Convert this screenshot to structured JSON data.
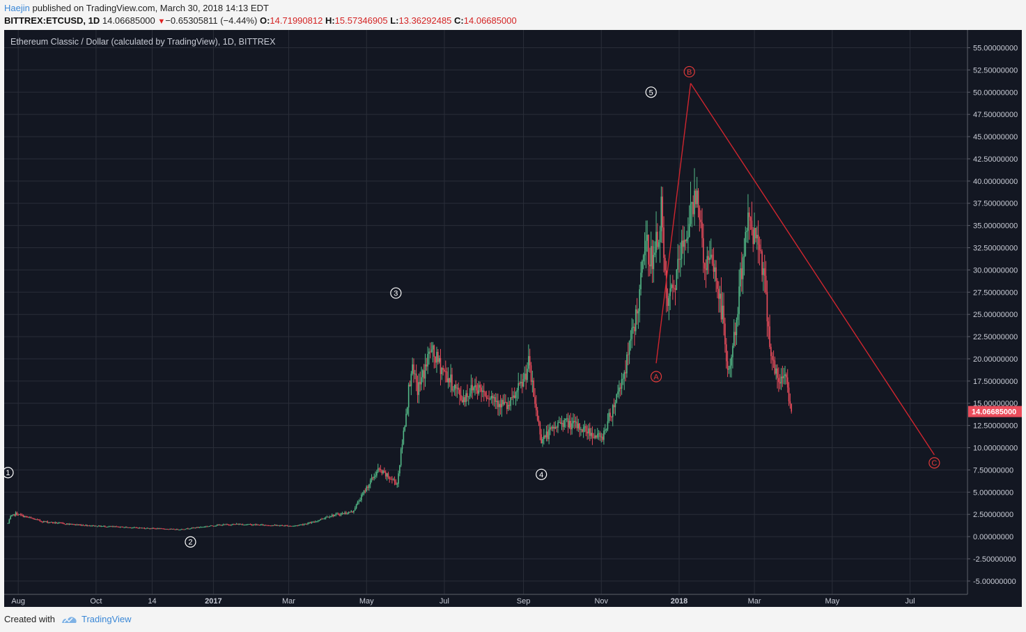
{
  "header": {
    "author": "Haejin",
    "published_text": "published on TradingView.com, March 30, 2018 14:13 EDT",
    "symbol_text": "BITTREX:ETCUSD, 1D",
    "last_price": "14.06685000",
    "change_arrow": "▼",
    "change_text": "−0.65305811 (−4.44%)",
    "open_label": "O:",
    "open_value": "14.71990812",
    "high_label": "H:",
    "high_value": "15.57346905",
    "low_label": "L:",
    "low_value": "13.36292485",
    "close_label": "C:",
    "close_value": "14.06685000"
  },
  "footer": {
    "created_with": "Created with",
    "brand": "TradingView"
  },
  "colors": {
    "background": "#131722",
    "up": "#53b987",
    "down": "#eb4d5c",
    "wave_line": "#d0262f",
    "grid": "#2a2e39"
  },
  "chart_data": {
    "type": "candlestick",
    "title": "Ethereum Classic / Dollar (calculated by TradingView), 1D, BITTREX",
    "price_label": "14.06685000",
    "ylim": [
      -6.5,
      57
    ],
    "yticks": [
      55,
      52.5,
      50,
      47.5,
      45,
      42.5,
      40,
      37.5,
      35,
      32.5,
      30,
      27.5,
      25,
      22.5,
      20,
      17.5,
      15,
      12.5,
      10,
      7.5,
      5,
      2.5,
      0,
      -2.5,
      -5
    ],
    "ytick_labels": [
      "55.00000000",
      "52.50000000",
      "50.00000000",
      "47.50000000",
      "45.00000000",
      "42.50000000",
      "40.00000000",
      "37.50000000",
      "35.00000000",
      "32.50000000",
      "30.00000000",
      "27.50000000",
      "25.00000000",
      "22.50000000",
      "20.00000000",
      "17.50000000",
      "15.00000000",
      "12.50000000",
      "10.00000000",
      "7.50000000",
      "5.00000000",
      "2.50000000",
      "0.00000000",
      "-2.50000000",
      "-5.00000000"
    ],
    "xlim": [
      "2016-07-21",
      "2018-08-15"
    ],
    "xticks": [
      {
        "date": "2016-08-01",
        "label": "Aug"
      },
      {
        "date": "2016-10-01",
        "label": "Oct"
      },
      {
        "date": "2016-11-14",
        "label": "14"
      },
      {
        "date": "2017-01-01",
        "label": "2017"
      },
      {
        "date": "2017-03-01",
        "label": "Mar"
      },
      {
        "date": "2017-05-01",
        "label": "May"
      },
      {
        "date": "2017-07-01",
        "label": "Jul"
      },
      {
        "date": "2017-09-01",
        "label": "Sep"
      },
      {
        "date": "2017-11-01",
        "label": "Nov"
      },
      {
        "date": "2018-01-01",
        "label": "2018"
      },
      {
        "date": "2018-03-01",
        "label": "Mar"
      },
      {
        "date": "2018-05-01",
        "label": "May"
      },
      {
        "date": "2018-07-01",
        "label": "Jul"
      }
    ],
    "price_path": [
      [
        "2016-07-24",
        1.5
      ],
      [
        "2016-07-26",
        2.2
      ],
      [
        "2016-07-30",
        2.6
      ],
      [
        "2016-08-05",
        2.3
      ],
      [
        "2016-08-20",
        1.7
      ],
      [
        "2016-09-10",
        1.4
      ],
      [
        "2016-10-01",
        1.2
      ],
      [
        "2016-11-01",
        1.0
      ],
      [
        "2016-12-05",
        0.8
      ],
      [
        "2017-01-05",
        1.3
      ],
      [
        "2017-01-20",
        1.4
      ],
      [
        "2017-02-10",
        1.3
      ],
      [
        "2017-03-05",
        1.2
      ],
      [
        "2017-03-20",
        1.6
      ],
      [
        "2017-04-01",
        2.3
      ],
      [
        "2017-04-20",
        2.8
      ],
      [
        "2017-05-01",
        5.5
      ],
      [
        "2017-05-10",
        7.5
      ],
      [
        "2017-05-20",
        6.5
      ],
      [
        "2017-05-25",
        6.0
      ],
      [
        "2017-06-01",
        14.0
      ],
      [
        "2017-06-05",
        19.0
      ],
      [
        "2017-06-10",
        16.5
      ],
      [
        "2017-06-15",
        18.5
      ],
      [
        "2017-06-20",
        21.0
      ],
      [
        "2017-07-01",
        18.5
      ],
      [
        "2017-07-15",
        15.5
      ],
      [
        "2017-07-25",
        17.0
      ],
      [
        "2017-08-10",
        15.5
      ],
      [
        "2017-08-20",
        14.5
      ],
      [
        "2017-09-01",
        17.5
      ],
      [
        "2017-09-05",
        19.5
      ],
      [
        "2017-09-10",
        15.0
      ],
      [
        "2017-09-15",
        11.0
      ],
      [
        "2017-09-20",
        11.5
      ],
      [
        "2017-10-01",
        13.0
      ],
      [
        "2017-10-20",
        12.0
      ],
      [
        "2017-11-01",
        11.0
      ],
      [
        "2017-11-10",
        14.5
      ],
      [
        "2017-11-20",
        19.0
      ],
      [
        "2017-12-01",
        27.0
      ],
      [
        "2017-12-05",
        33.0
      ],
      [
        "2017-12-12",
        31.0
      ],
      [
        "2017-12-18",
        36.5
      ],
      [
        "2017-12-22",
        26.0
      ],
      [
        "2017-12-28",
        28.0
      ],
      [
        "2018-01-05",
        33.5
      ],
      [
        "2018-01-10",
        36.0
      ],
      [
        "2018-01-15",
        40.0
      ],
      [
        "2018-01-20",
        31.0
      ],
      [
        "2018-01-28",
        30.5
      ],
      [
        "2018-02-05",
        24.0
      ],
      [
        "2018-02-08",
        18.0
      ],
      [
        "2018-02-15",
        24.0
      ],
      [
        "2018-02-20",
        32.0
      ],
      [
        "2018-02-25",
        36.0
      ],
      [
        "2018-03-01",
        34.0
      ],
      [
        "2018-03-05",
        33.5
      ],
      [
        "2018-03-10",
        27.0
      ],
      [
        "2018-03-14",
        20.5
      ],
      [
        "2018-03-20",
        17.0
      ],
      [
        "2018-03-25",
        18.5
      ],
      [
        "2018-03-30",
        14.07
      ]
    ],
    "wave_labels": [
      {
        "label": "1",
        "date": "2016-07-24",
        "price": 7.2,
        "color": "white"
      },
      {
        "label": "2",
        "date": "2016-12-14",
        "price": -0.6,
        "color": "white"
      },
      {
        "label": "3",
        "date": "2017-05-24",
        "price": 27.4,
        "color": "white"
      },
      {
        "label": "4",
        "date": "2017-09-15",
        "price": 7.0,
        "color": "white"
      },
      {
        "label": "5",
        "date": "2017-12-10",
        "price": 50.0,
        "color": "white"
      },
      {
        "label": "A",
        "date": "2017-12-14",
        "price": 18.0,
        "color": "red"
      },
      {
        "label": "B",
        "date": "2018-01-09",
        "price": 52.3,
        "color": "red"
      },
      {
        "label": "C",
        "date": "2018-07-20",
        "price": 8.3,
        "color": "red"
      }
    ],
    "wave_line": [
      {
        "date": "2017-12-14",
        "price": 19.5
      },
      {
        "date": "2018-01-10",
        "price": 51.0
      },
      {
        "date": "2018-07-20",
        "price": 9.2
      }
    ]
  }
}
